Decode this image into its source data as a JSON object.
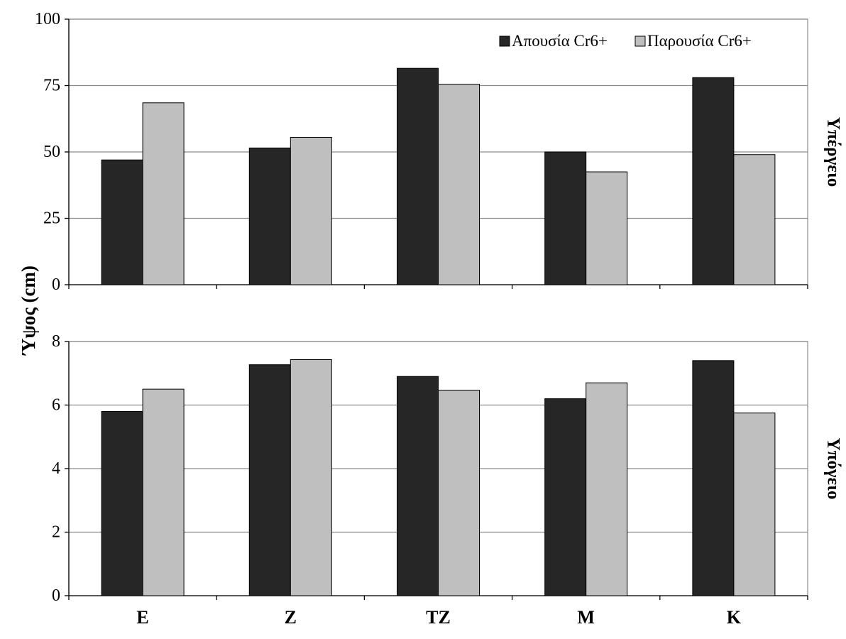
{
  "chart_data": {
    "type": "bar",
    "categories": [
      "E",
      "Z",
      "TZ",
      "M",
      "K"
    ],
    "ylabel": "Ύψος (cm)",
    "legend": {
      "position": "top-right",
      "entries": [
        "Απουσία Cr6+",
        "Παρουσία Cr6+"
      ]
    },
    "colors": {
      "series1": "#262626",
      "series2": "#bfbfbf",
      "grid": "#8c8c8c",
      "axis": "#000000"
    },
    "panels": [
      {
        "side_label": "Υπέργειο",
        "ylim": [
          0,
          100
        ],
        "yticks": [
          "0",
          "25",
          "50",
          "75",
          "100"
        ],
        "tick_values": [
          0,
          25,
          50,
          75,
          100
        ],
        "grid": true,
        "series": [
          {
            "name": "Απουσία Cr6+",
            "values": [
              47,
              51.5,
              81.5,
              50,
              78
            ]
          },
          {
            "name": "Παρουσία Cr6+",
            "values": [
              68.5,
              55.5,
              75.5,
              42.5,
              49
            ]
          }
        ]
      },
      {
        "side_label": "Υπόγειο",
        "ylim": [
          0,
          8
        ],
        "yticks": [
          "0",
          "2",
          "4",
          "6",
          "8"
        ],
        "tick_values": [
          0,
          2,
          4,
          6,
          8
        ],
        "grid": true,
        "series": [
          {
            "name": "Απουσία Cr6+",
            "values": [
              5.8,
              7.27,
              6.9,
              6.2,
              7.4
            ]
          },
          {
            "name": "Παρουσία Cr6+",
            "values": [
              6.5,
              7.43,
              6.47,
              6.7,
              5.75
            ]
          }
        ]
      }
    ]
  }
}
